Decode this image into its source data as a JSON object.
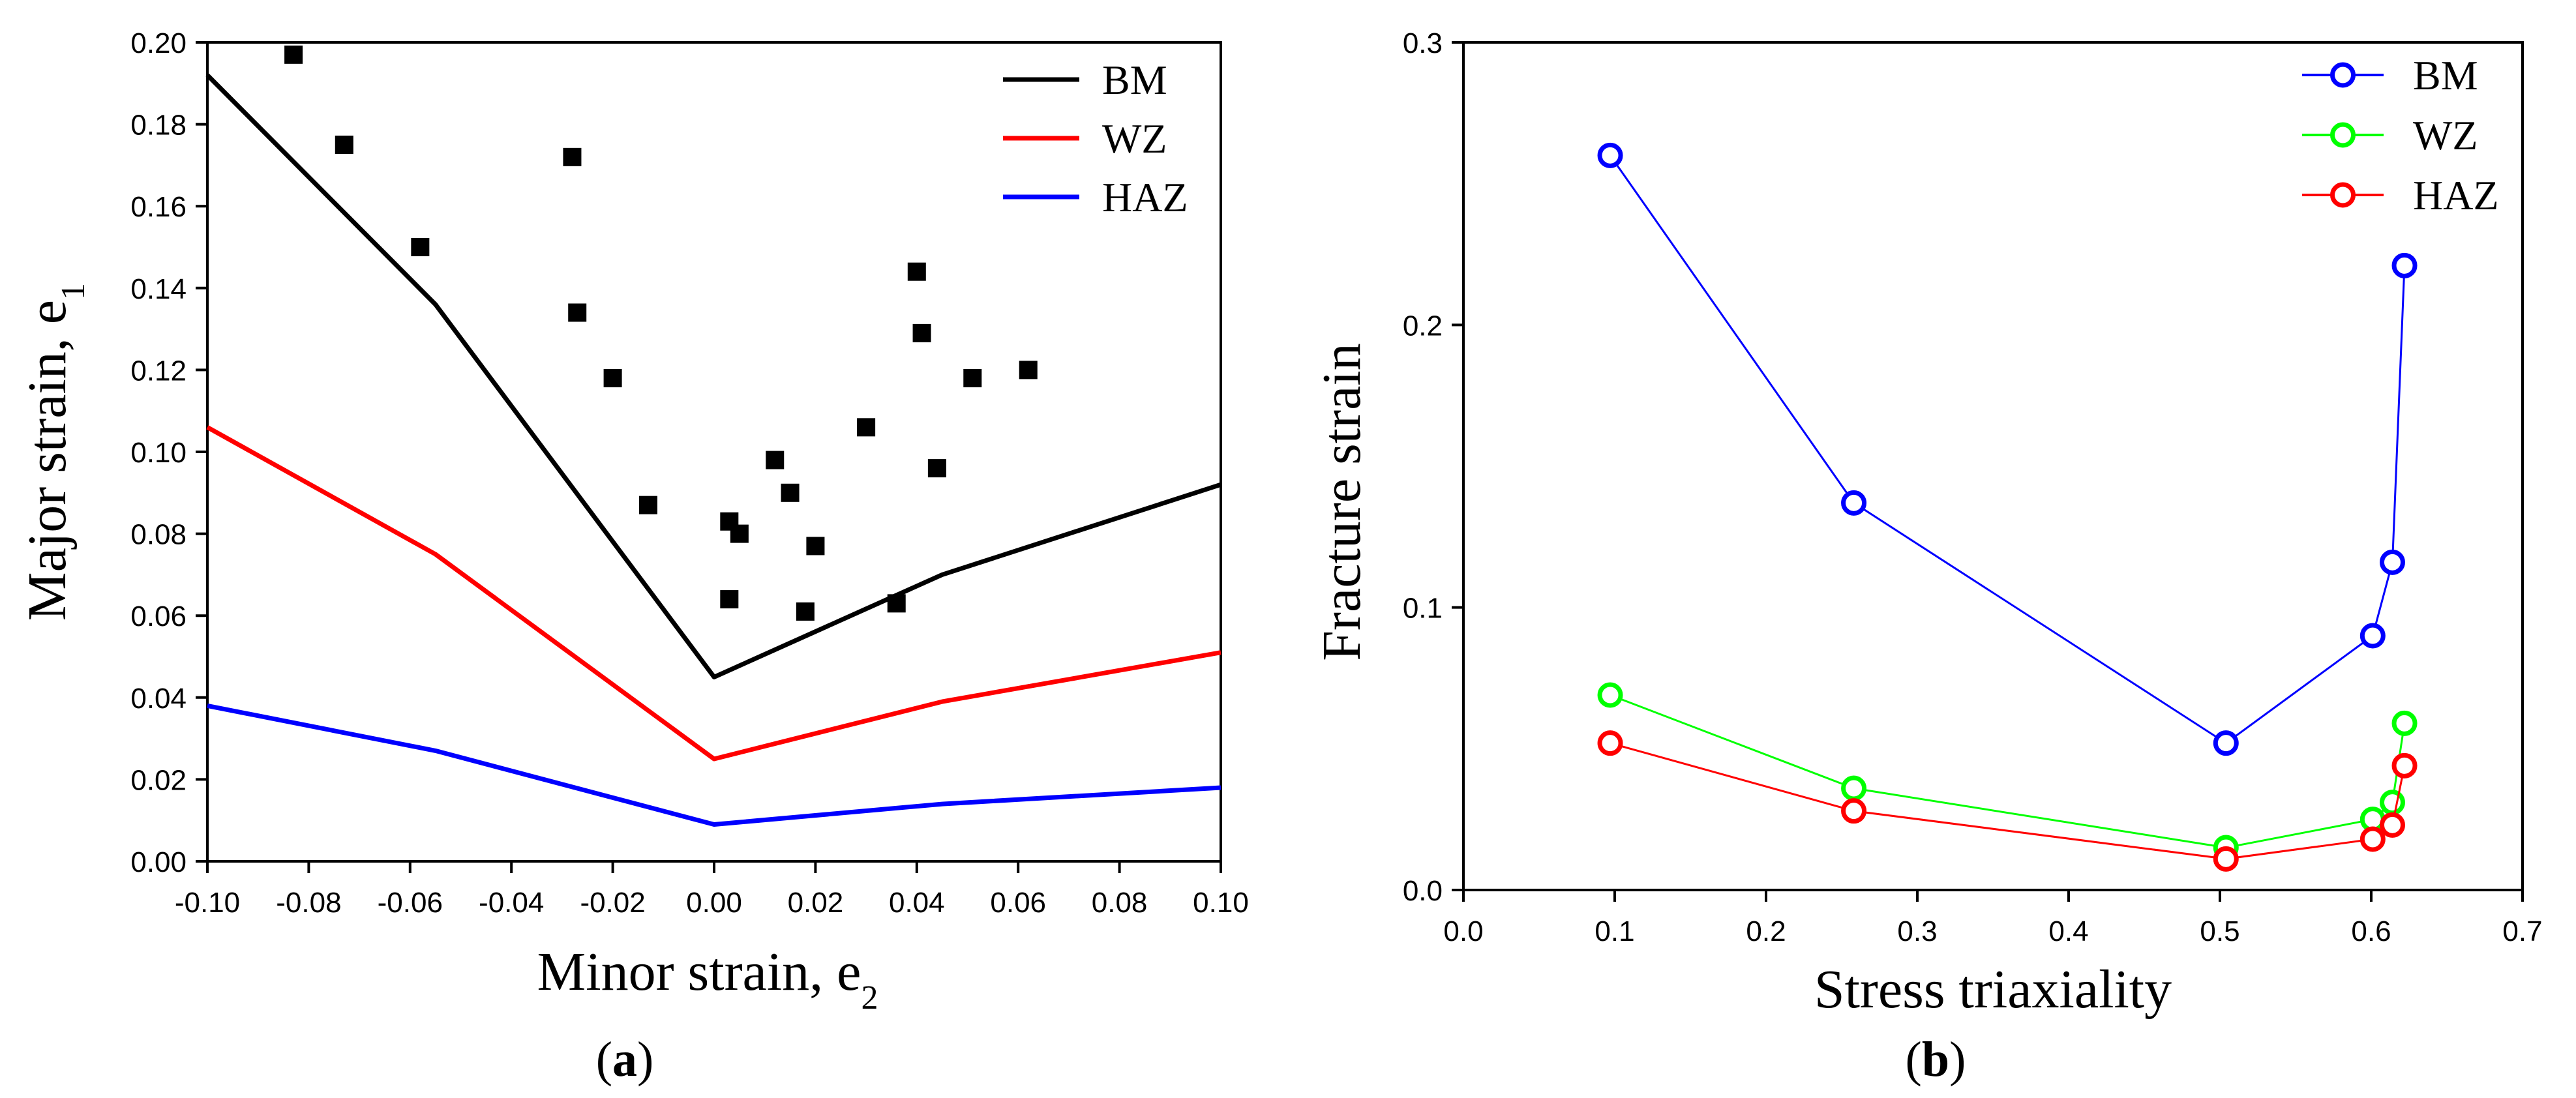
{
  "chart_data": [
    {
      "panel": "a",
      "type": "line",
      "label": "(a)",
      "label_letter": "a",
      "xlabel": "Minor strain, e",
      "xlabel_sub": "2",
      "ylabel": "Major strain, e",
      "ylabel_sub": "1",
      "xlim": [
        -0.1,
        0.1
      ],
      "ylim": [
        0.0,
        0.2
      ],
      "xticks": [
        "-0.10",
        "-0.08",
        "-0.06",
        "-0.04",
        "-0.02",
        "0.00",
        "0.02",
        "0.04",
        "0.06",
        "0.08",
        "0.10"
      ],
      "yticks": [
        "0.00",
        "0.02",
        "0.04",
        "0.06",
        "0.08",
        "0.10",
        "0.12",
        "0.14",
        "0.16",
        "0.18",
        "0.20"
      ],
      "legend_position": "top-right",
      "series": [
        {
          "name": "BM",
          "color": "#000000",
          "x": [
            -0.1,
            -0.055,
            0.0,
            0.045,
            0.1
          ],
          "y": [
            0.192,
            0.136,
            0.045,
            0.07,
            0.092
          ]
        },
        {
          "name": "WZ",
          "color": "#ff0000",
          "x": [
            -0.1,
            -0.055,
            0.0,
            0.045,
            0.1
          ],
          "y": [
            0.106,
            0.075,
            0.025,
            0.039,
            0.051
          ]
        },
        {
          "name": "HAZ",
          "color": "#0000ff",
          "x": [
            -0.1,
            -0.055,
            0.0,
            0.045,
            0.1
          ],
          "y": [
            0.038,
            0.027,
            0.009,
            0.014,
            0.018
          ]
        }
      ],
      "scatter": {
        "color": "#000000",
        "points": [
          [
            -0.083,
            0.197
          ],
          [
            -0.073,
            0.175
          ],
          [
            -0.058,
            0.15
          ],
          [
            -0.028,
            0.172
          ],
          [
            -0.027,
            0.134
          ],
          [
            -0.02,
            0.118
          ],
          [
            -0.013,
            0.087
          ],
          [
            0.003,
            0.064
          ],
          [
            0.003,
            0.083
          ],
          [
            0.005,
            0.08
          ],
          [
            0.012,
            0.098
          ],
          [
            0.015,
            0.09
          ],
          [
            0.018,
            0.061
          ],
          [
            0.02,
            0.077
          ],
          [
            0.03,
            0.106
          ],
          [
            0.036,
            0.063
          ],
          [
            0.04,
            0.144
          ],
          [
            0.041,
            0.129
          ],
          [
            0.044,
            0.096
          ],
          [
            0.051,
            0.118
          ],
          [
            0.062,
            0.12
          ]
        ]
      }
    },
    {
      "panel": "b",
      "type": "line",
      "label": "(b)",
      "label_letter": "b",
      "xlabel": "Stress triaxiality",
      "ylabel": "Fracture strain",
      "xlim": [
        0.0,
        0.7
      ],
      "ylim": [
        0.0,
        0.3
      ],
      "xticks": [
        "0.0",
        "0.1",
        "0.2",
        "0.3",
        "0.4",
        "0.5",
        "0.6",
        "0.7"
      ],
      "yticks": [
        "0.0",
        "0.1",
        "0.2",
        "0.3"
      ],
      "legend_position": "top-right",
      "series": [
        {
          "name": "BM",
          "color": "#0000ff",
          "x": [
            0.097,
            0.258,
            0.504,
            0.601,
            0.614,
            0.622
          ],
          "y": [
            0.26,
            0.137,
            0.052,
            0.09,
            0.116,
            0.221
          ]
        },
        {
          "name": "WZ",
          "color": "#00ff00",
          "x": [
            0.097,
            0.258,
            0.504,
            0.601,
            0.614,
            0.622
          ],
          "y": [
            0.069,
            0.036,
            0.015,
            0.025,
            0.031,
            0.059
          ]
        },
        {
          "name": "HAZ",
          "color": "#ff0000",
          "x": [
            0.097,
            0.258,
            0.504,
            0.601,
            0.614,
            0.622
          ],
          "y": [
            0.052,
            0.028,
            0.011,
            0.018,
            0.023,
            0.044
          ]
        }
      ]
    }
  ]
}
